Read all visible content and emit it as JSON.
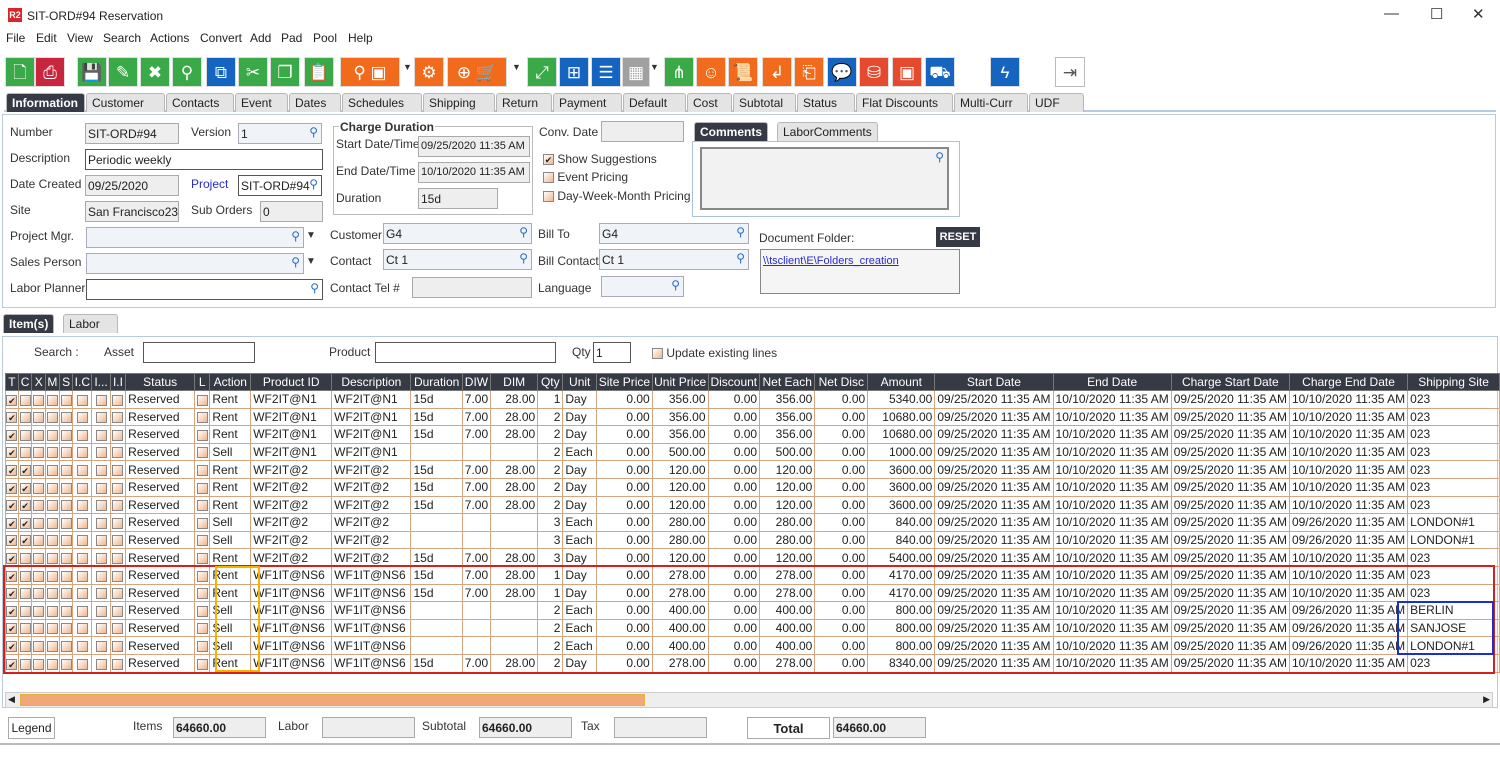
{
  "window": {
    "title": "SIT-ORD#94 Reservation",
    "logo": "R2",
    "minimize": "—",
    "maximize": "☐",
    "close": "✕"
  },
  "menu": [
    "File",
    "Edit",
    "View",
    "Search",
    "Actions",
    "Convert",
    "Add",
    "Pad",
    "Pool",
    "Help"
  ],
  "toolbar": [
    {
      "icon": "new-document-icon",
      "color": "#3aaa48",
      "glyph": "🗋"
    },
    {
      "icon": "print-icon",
      "color": "#c8253f",
      "glyph": "⎙"
    },
    {
      "icon": "save-icon",
      "color": "#3aaa48",
      "glyph": "💾"
    },
    {
      "icon": "edit-pencil-icon",
      "color": "#3aaa48",
      "glyph": "✎"
    },
    {
      "icon": "delete-x-icon",
      "color": "#3aaa48",
      "glyph": "✖"
    },
    {
      "icon": "search-icon",
      "color": "#3aaa48",
      "glyph": "⚲"
    },
    {
      "icon": "copy-number-icon",
      "color": "#1565c0",
      "glyph": "⧉"
    },
    {
      "icon": "scissors-icon",
      "color": "#3aaa48",
      "glyph": "✂"
    },
    {
      "icon": "duplicate-icon",
      "color": "#3aaa48",
      "glyph": "❐"
    },
    {
      "icon": "paste-icon",
      "color": "#3aaa48",
      "glyph": "📋"
    },
    {
      "icon": "search-box-icon",
      "color": "#f26b1d",
      "glyph": "⚲ ▣"
    },
    {
      "icon": "gears-icon",
      "color": "#f26b1d",
      "glyph": "⚙"
    },
    {
      "icon": "po-cart-icon",
      "color": "#f26b1d",
      "glyph": "⊕ 🛒"
    },
    {
      "icon": "expand-icon",
      "color": "#3aaa48",
      "glyph": "⤢"
    },
    {
      "icon": "network-icon",
      "color": "#1565c0",
      "glyph": "⊞"
    },
    {
      "icon": "message-icon",
      "color": "#1565c0",
      "glyph": "☰"
    },
    {
      "icon": "calendar-icon",
      "color": "#a0a0a0",
      "glyph": "▦"
    },
    {
      "icon": "hierarchy-icon",
      "color": "#3aaa48",
      "glyph": "⋔"
    },
    {
      "icon": "smile-icon",
      "color": "#f26b1d",
      "glyph": "☺"
    },
    {
      "icon": "scroll-icon",
      "color": "#f26b1d",
      "glyph": "📜"
    },
    {
      "icon": "return-icon",
      "color": "#f26b1d",
      "glyph": "↲"
    },
    {
      "icon": "box-return-icon",
      "color": "#f26b1d",
      "glyph": "⎗"
    },
    {
      "icon": "chat-zero-icon",
      "color": "#1565c0",
      "glyph": "💬"
    },
    {
      "icon": "coins-add-icon",
      "color": "#e64a2e",
      "glyph": "⛁"
    },
    {
      "icon": "safe-icon",
      "color": "#e64a2e",
      "glyph": "▣"
    },
    {
      "icon": "truck-check-icon",
      "color": "#1565c0",
      "glyph": "⛟"
    },
    {
      "icon": "lightning-icon",
      "color": "#1565c0",
      "glyph": "ϟ"
    },
    {
      "icon": "exit-icon",
      "color": "#ffffff",
      "glyph": "⇥"
    }
  ],
  "tabs": [
    "Information",
    "Customer",
    "Contacts",
    "Event",
    "Dates",
    "Schedules",
    "Shipping",
    "Return",
    "Payment",
    "Default",
    "Cost",
    "Subtotal",
    "Status",
    "Flat Discounts",
    "Multi-Curr",
    "UDF"
  ],
  "form": {
    "number_label": "Number",
    "number": "SIT-ORD#94",
    "version_label": "Version",
    "version": "1",
    "description_label": "Description",
    "description": "Periodic weekly",
    "date_created_label": "Date Created",
    "date_created": "09/25/2020",
    "project_label": "Project",
    "project": "SIT-ORD#94",
    "site_label": "Site",
    "site": "San Francisco23",
    "sub_orders_label": "Sub Orders",
    "sub_orders": "0",
    "project_mgr_label": "Project Mgr.",
    "sales_person_label": "Sales Person",
    "labor_planner_label": "Labor Planner",
    "charge_duration_label": "Charge Duration",
    "start_label": "Start Date/Time",
    "start": "09/25/2020 11:35 AM",
    "end_label": "End Date/Time",
    "end": "10/10/2020 11:35 AM",
    "duration_label": "Duration",
    "duration": "15d",
    "customer_label": "Customer",
    "customer": "G4",
    "contact_label": "Contact",
    "contact": "Ct 1",
    "contact_tel_label": "Contact Tel #",
    "conv_date_label": "Conv. Date",
    "show_suggestions": "Show Suggestions",
    "event_pricing": "Event Pricing",
    "dwm_pricing": "Day-Week-Month Pricing",
    "bill_to_label": "Bill To",
    "bill_to": "G4",
    "bill_contact_label": "Bill Contact",
    "bill_contact": "Ct 1",
    "language_label": "Language",
    "comments_tab": "Comments",
    "labor_comments_tab": "LaborComments",
    "doc_folder_label": "Document Folder:",
    "reset": "RESET",
    "doc_folder_link": "\\\\tsclient\\E\\Folders_creation"
  },
  "subtabs": [
    "Item(s)",
    "Labor"
  ],
  "search": {
    "label": "Search :",
    "asset_label": "Asset",
    "product_label": "Product",
    "qty_label": "Qty",
    "qty": "1",
    "update_existing": "Update existing lines"
  },
  "columns": [
    "T",
    "C",
    "X",
    "M",
    "S",
    "I.C",
    "I...",
    "I.I",
    "Status",
    "L",
    "Action",
    "Product ID",
    "Description",
    "Duration",
    "DIW",
    "DIM",
    "Qty",
    "Unit",
    "Site Price",
    "Unit Price",
    "Discount",
    "Net Each",
    "Net Disc",
    "Amount",
    "Start Date",
    "End Date",
    "Charge Start Date",
    "Charge End Date",
    "Shipping Site"
  ],
  "rows": [
    {
      "c": false,
      "status": "Reserved",
      "action": "Rent",
      "pid": "WF2IT@N1",
      "desc": "WF2IT@N1",
      "dur": "15d",
      "diw": "7.00",
      "dim": "28.00",
      "qty": "1",
      "unit": "Day",
      "site": "0.00",
      "unitp": "356.00",
      "disc": "0.00",
      "net": "356.00",
      "netd": "0.00",
      "amt": "5340.00",
      "sd": "09/25/2020 11:35 AM",
      "ed": "10/10/2020 11:35 AM",
      "csd": "09/25/2020 11:35 AM",
      "ced": "10/10/2020 11:35 AM",
      "ship": "023"
    },
    {
      "c": false,
      "status": "Reserved",
      "action": "Rent",
      "pid": "WF2IT@N1",
      "desc": "WF2IT@N1",
      "dur": "15d",
      "diw": "7.00",
      "dim": "28.00",
      "qty": "2",
      "unit": "Day",
      "site": "0.00",
      "unitp": "356.00",
      "disc": "0.00",
      "net": "356.00",
      "netd": "0.00",
      "amt": "10680.00",
      "sd": "09/25/2020 11:35 AM",
      "ed": "10/10/2020 11:35 AM",
      "csd": "09/25/2020 11:35 AM",
      "ced": "10/10/2020 11:35 AM",
      "ship": "023"
    },
    {
      "c": false,
      "status": "Reserved",
      "action": "Rent",
      "pid": "WF2IT@N1",
      "desc": "WF2IT@N1",
      "dur": "15d",
      "diw": "7.00",
      "dim": "28.00",
      "qty": "2",
      "unit": "Day",
      "site": "0.00",
      "unitp": "356.00",
      "disc": "0.00",
      "net": "356.00",
      "netd": "0.00",
      "amt": "10680.00",
      "sd": "09/25/2020 11:35 AM",
      "ed": "10/10/2020 11:35 AM",
      "csd": "09/25/2020 11:35 AM",
      "ced": "10/10/2020 11:35 AM",
      "ship": "023"
    },
    {
      "c": false,
      "status": "Reserved",
      "action": "Sell",
      "pid": "WF2IT@N1",
      "desc": "WF2IT@N1",
      "dur": "",
      "diw": "",
      "dim": "",
      "qty": "2",
      "unit": "Each",
      "site": "0.00",
      "unitp": "500.00",
      "disc": "0.00",
      "net": "500.00",
      "netd": "0.00",
      "amt": "1000.00",
      "sd": "09/25/2020 11:35 AM",
      "ed": "10/10/2020 11:35 AM",
      "csd": "09/25/2020 11:35 AM",
      "ced": "10/10/2020 11:35 AM",
      "ship": "023"
    },
    {
      "c": true,
      "status": "Reserved",
      "action": "Rent",
      "pid": "WF2IT@2",
      "desc": "WF2IT@2",
      "dur": "15d",
      "diw": "7.00",
      "dim": "28.00",
      "qty": "2",
      "unit": "Day",
      "site": "0.00",
      "unitp": "120.00",
      "disc": "0.00",
      "net": "120.00",
      "netd": "0.00",
      "amt": "3600.00",
      "sd": "09/25/2020 11:35 AM",
      "ed": "10/10/2020 11:35 AM",
      "csd": "09/25/2020 11:35 AM",
      "ced": "10/10/2020 11:35 AM",
      "ship": "023"
    },
    {
      "c": true,
      "status": "Reserved",
      "action": "Rent",
      "pid": "WF2IT@2",
      "desc": "WF2IT@2",
      "dur": "15d",
      "diw": "7.00",
      "dim": "28.00",
      "qty": "2",
      "unit": "Day",
      "site": "0.00",
      "unitp": "120.00",
      "disc": "0.00",
      "net": "120.00",
      "netd": "0.00",
      "amt": "3600.00",
      "sd": "09/25/2020 11:35 AM",
      "ed": "10/10/2020 11:35 AM",
      "csd": "09/25/2020 11:35 AM",
      "ced": "10/10/2020 11:35 AM",
      "ship": "023"
    },
    {
      "c": true,
      "status": "Reserved",
      "action": "Rent",
      "pid": "WF2IT@2",
      "desc": "WF2IT@2",
      "dur": "15d",
      "diw": "7.00",
      "dim": "28.00",
      "qty": "2",
      "unit": "Day",
      "site": "0.00",
      "unitp": "120.00",
      "disc": "0.00",
      "net": "120.00",
      "netd": "0.00",
      "amt": "3600.00",
      "sd": "09/25/2020 11:35 AM",
      "ed": "10/10/2020 11:35 AM",
      "csd": "09/25/2020 11:35 AM",
      "ced": "10/10/2020 11:35 AM",
      "ship": "023"
    },
    {
      "c": true,
      "status": "Reserved",
      "action": "Sell",
      "pid": "WF2IT@2",
      "desc": "WF2IT@2",
      "dur": "",
      "diw": "",
      "dim": "",
      "qty": "3",
      "unit": "Each",
      "site": "0.00",
      "unitp": "280.00",
      "disc": "0.00",
      "net": "280.00",
      "netd": "0.00",
      "amt": "840.00",
      "sd": "09/25/2020 11:35 AM",
      "ed": "10/10/2020 11:35 AM",
      "csd": "09/25/2020 11:35 AM",
      "ced": "09/26/2020 11:35 AM",
      "ship": "LONDON#1"
    },
    {
      "c": true,
      "status": "Reserved",
      "action": "Sell",
      "pid": "WF2IT@2",
      "desc": "WF2IT@2",
      "dur": "",
      "diw": "",
      "dim": "",
      "qty": "3",
      "unit": "Each",
      "site": "0.00",
      "unitp": "280.00",
      "disc": "0.00",
      "net": "280.00",
      "netd": "0.00",
      "amt": "840.00",
      "sd": "09/25/2020 11:35 AM",
      "ed": "10/10/2020 11:35 AM",
      "csd": "09/25/2020 11:35 AM",
      "ced": "09/26/2020 11:35 AM",
      "ship": "LONDON#1"
    },
    {
      "c": false,
      "status": "Reserved",
      "action": "Rent",
      "pid": "WF2IT@2",
      "desc": "WF2IT@2",
      "dur": "15d",
      "diw": "7.00",
      "dim": "28.00",
      "qty": "3",
      "unit": "Day",
      "site": "0.00",
      "unitp": "120.00",
      "disc": "0.00",
      "net": "120.00",
      "netd": "0.00",
      "amt": "5400.00",
      "sd": "09/25/2020 11:35 AM",
      "ed": "10/10/2020 11:35 AM",
      "csd": "09/25/2020 11:35 AM",
      "ced": "10/10/2020 11:35 AM",
      "ship": "023"
    },
    {
      "c": false,
      "status": "Reserved",
      "action": "Rent",
      "pid": "WF1IT@NS6",
      "desc": "WF1IT@NS6",
      "dur": "15d",
      "diw": "7.00",
      "dim": "28.00",
      "qty": "1",
      "unit": "Day",
      "site": "0.00",
      "unitp": "278.00",
      "disc": "0.00",
      "net": "278.00",
      "netd": "0.00",
      "amt": "4170.00",
      "sd": "09/25/2020 11:35 AM",
      "ed": "10/10/2020 11:35 AM",
      "csd": "09/25/2020 11:35 AM",
      "ced": "10/10/2020 11:35 AM",
      "ship": "023"
    },
    {
      "c": false,
      "status": "Reserved",
      "action": "Rent",
      "pid": "WF1IT@NS6",
      "desc": "WF1IT@NS6",
      "dur": "15d",
      "diw": "7.00",
      "dim": "28.00",
      "qty": "1",
      "unit": "Day",
      "site": "0.00",
      "unitp": "278.00",
      "disc": "0.00",
      "net": "278.00",
      "netd": "0.00",
      "amt": "4170.00",
      "sd": "09/25/2020 11:35 AM",
      "ed": "10/10/2020 11:35 AM",
      "csd": "09/25/2020 11:35 AM",
      "ced": "10/10/2020 11:35 AM",
      "ship": "023"
    },
    {
      "c": false,
      "status": "Reserved",
      "action": "Sell",
      "pid": "WF1IT@NS6",
      "desc": "WF1IT@NS6",
      "dur": "",
      "diw": "",
      "dim": "",
      "qty": "2",
      "unit": "Each",
      "site": "0.00",
      "unitp": "400.00",
      "disc": "0.00",
      "net": "400.00",
      "netd": "0.00",
      "amt": "800.00",
      "sd": "09/25/2020 11:35 AM",
      "ed": "10/10/2020 11:35 AM",
      "csd": "09/25/2020 11:35 AM",
      "ced": "09/26/2020 11:35 AM",
      "ship": "BERLIN"
    },
    {
      "c": false,
      "status": "Reserved",
      "action": "Sell",
      "pid": "WF1IT@NS6",
      "desc": "WF1IT@NS6",
      "dur": "",
      "diw": "",
      "dim": "",
      "qty": "2",
      "unit": "Each",
      "site": "0.00",
      "unitp": "400.00",
      "disc": "0.00",
      "net": "400.00",
      "netd": "0.00",
      "amt": "800.00",
      "sd": "09/25/2020 11:35 AM",
      "ed": "10/10/2020 11:35 AM",
      "csd": "09/25/2020 11:35 AM",
      "ced": "09/26/2020 11:35 AM",
      "ship": "SANJOSE"
    },
    {
      "c": false,
      "status": "Reserved",
      "action": "Sell",
      "pid": "WF1IT@NS6",
      "desc": "WF1IT@NS6",
      "dur": "",
      "diw": "",
      "dim": "",
      "qty": "2",
      "unit": "Each",
      "site": "0.00",
      "unitp": "400.00",
      "disc": "0.00",
      "net": "400.00",
      "netd": "0.00",
      "amt": "800.00",
      "sd": "09/25/2020 11:35 AM",
      "ed": "10/10/2020 11:35 AM",
      "csd": "09/25/2020 11:35 AM",
      "ced": "09/26/2020 11:35 AM",
      "ship": "LONDON#1"
    },
    {
      "c": false,
      "status": "Reserved",
      "action": "Rent",
      "pid": "WF1IT@NS6",
      "desc": "WF1IT@NS6",
      "dur": "15d",
      "diw": "7.00",
      "dim": "28.00",
      "qty": "2",
      "unit": "Day",
      "site": "0.00",
      "unitp": "278.00",
      "disc": "0.00",
      "net": "278.00",
      "netd": "0.00",
      "amt": "8340.00",
      "sd": "09/25/2020 11:35 AM",
      "ed": "10/10/2020 11:35 AM",
      "csd": "09/25/2020 11:35 AM",
      "ced": "10/10/2020 11:35 AM",
      "ship": "023"
    }
  ],
  "scroll_position_pct": 42,
  "footer": {
    "legend": "Legend",
    "items_label": "Items",
    "items": "64660.00",
    "labor_label": "Labor",
    "labor": "",
    "subtotal_label": "Subtotal",
    "subtotal": "64660.00",
    "tax_label": "Tax",
    "tax": "",
    "total_label": "Total",
    "total": "64660.00"
  },
  "highlight_colors": {
    "red_box": "#d32020",
    "orange_box": "#f5b300",
    "blue_box": "#1a2fd0"
  }
}
